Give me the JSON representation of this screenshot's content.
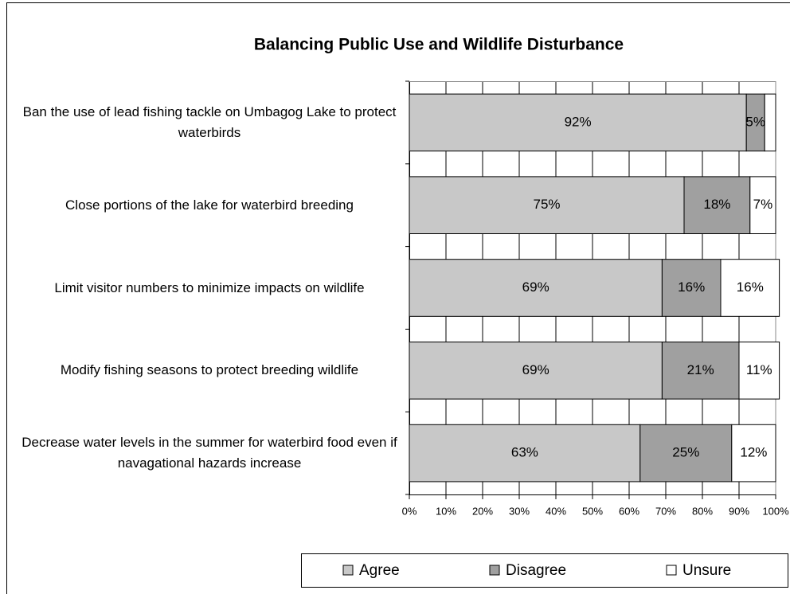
{
  "chart_data": {
    "type": "stacked-bar-horizontal",
    "title": "Balancing Public Use and Wildlife Disturbance",
    "categories": [
      "Ban the use of lead fishing tackle on Umbagog Lake to protect waterbirds",
      "Close portions of the lake for waterbird breeding",
      "Limit visitor numbers to minimize impacts on wildlife",
      "Modify fishing seasons to protect breeding wildlife",
      "Decrease water levels in the summer for waterbird food even if navagational hazards increase"
    ],
    "series": [
      {
        "name": "Agree",
        "color": "#c8c8c8",
        "values": [
          92,
          75,
          69,
          69,
          63
        ],
        "value_labels": [
          "92%",
          "75%",
          "69%",
          "69%",
          "63%"
        ]
      },
      {
        "name": "Disagree",
        "color": "#a0a0a0",
        "values": [
          5,
          18,
          16,
          21,
          25
        ],
        "value_labels": [
          "5%",
          "18%",
          "16%",
          "21%",
          "25%"
        ]
      },
      {
        "name": "Unsure",
        "color": "#ffffff",
        "values": [
          3,
          7,
          16,
          11,
          12
        ],
        "value_labels": [
          null,
          "7%",
          "16%",
          "11%",
          "12%"
        ]
      }
    ],
    "xlim": [
      0,
      100
    ],
    "xticks": [
      {
        "value": 0,
        "label": "0%"
      },
      {
        "value": 10,
        "label": "10%"
      },
      {
        "value": 20,
        "label": "20%"
      },
      {
        "value": 30,
        "label": "30%"
      },
      {
        "value": 40,
        "label": "40%"
      },
      {
        "value": 50,
        "label": "50%"
      },
      {
        "value": 60,
        "label": "60%"
      },
      {
        "value": 70,
        "label": "70%"
      },
      {
        "value": 80,
        "label": "80%"
      },
      {
        "value": 90,
        "label": "90%"
      },
      {
        "value": 100,
        "label": "100%"
      }
    ],
    "grid": true,
    "legend": "bottom"
  }
}
